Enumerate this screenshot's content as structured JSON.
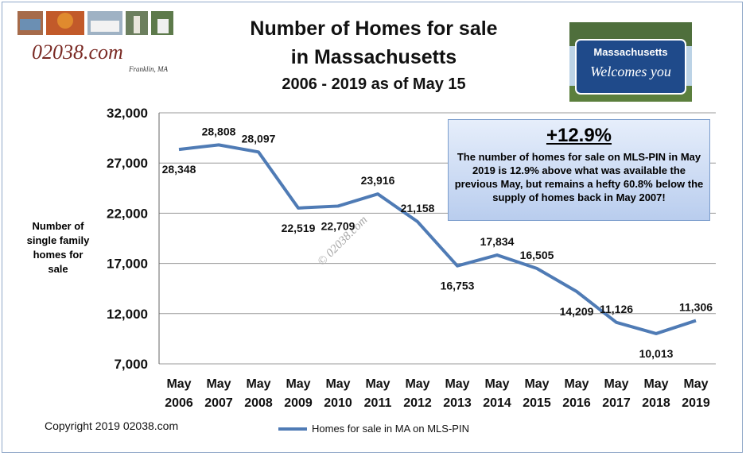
{
  "header": {
    "title_line1": "Number of Homes  for sale",
    "title_line2": "in Massachusetts",
    "subtitle": "2006 - 2019 as of May 15"
  },
  "logo": {
    "site": "02038.com",
    "town": "Franklin, MA"
  },
  "sign": {
    "line1": "Massachusetts",
    "line2": "Welcomes you"
  },
  "annotation": {
    "headline": "+12.9%",
    "body": "The number of homes for sale on MLS-PIN in May 2019 is 12.9% above  what was available the previous May, but remains a hefty 60.8% below the supply of homes back in May 2007!"
  },
  "watermark": "© 02038.com",
  "copyright": "Copyright 2019 02038.com",
  "colors": {
    "line": "#4f7bb5",
    "grid": "#9a9a9a"
  },
  "chart_data": {
    "type": "line",
    "ylabel": "Number of single family homes for sale",
    "ylim": [
      7000,
      32000
    ],
    "yticks": [
      "7,000",
      "12,000",
      "17,000",
      "22,000",
      "27,000",
      "32,000"
    ],
    "ytick_values": [
      7000,
      12000,
      17000,
      22000,
      27000,
      32000
    ],
    "grid": true,
    "categories": [
      [
        "May",
        "2006"
      ],
      [
        "May",
        "2007"
      ],
      [
        "May",
        "2008"
      ],
      [
        "May",
        "2009"
      ],
      [
        "May",
        "2010"
      ],
      [
        "May",
        "2011"
      ],
      [
        "May",
        "2012"
      ],
      [
        "May",
        "2013"
      ],
      [
        "May",
        "2014"
      ],
      [
        "May",
        "2015"
      ],
      [
        "May",
        "2016"
      ],
      [
        "May",
        "2017"
      ],
      [
        "May",
        "2018"
      ],
      [
        "May",
        "2019"
      ]
    ],
    "series": [
      {
        "name": "Homes for sale in MA on MLS-PIN",
        "values": [
          28348,
          28808,
          28097,
          22519,
          22709,
          23916,
          21158,
          16753,
          17834,
          16505,
          14209,
          11126,
          10013,
          11306
        ],
        "labels": [
          "28,348",
          "28,808",
          "28,097",
          "22,519",
          "22,709",
          "23,916",
          "21,158",
          "16,753",
          "17,834",
          "16,505",
          "14,209",
          "11,126",
          "10,013",
          "11,306"
        ]
      }
    ]
  }
}
